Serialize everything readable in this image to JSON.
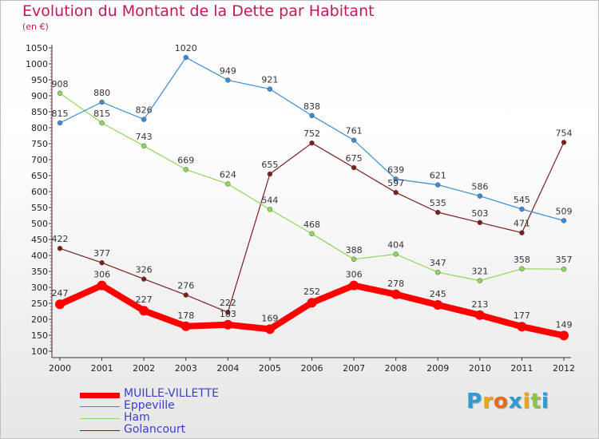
{
  "chart_data": {
    "type": "line",
    "title": "Evolution du Montant de la Dette par Habitant",
    "subtitle": "(en €)",
    "x": [
      "2000",
      "2001",
      "2002",
      "2003",
      "2004",
      "2005",
      "2006",
      "2007",
      "2008",
      "2009",
      "2010",
      "2011",
      "2012"
    ],
    "ylim": [
      100,
      1050
    ],
    "yticks": [
      100,
      150,
      200,
      250,
      300,
      350,
      400,
      450,
      500,
      550,
      600,
      650,
      700,
      750,
      800,
      850,
      900,
      950,
      1000,
      1050
    ],
    "grid": false,
    "legend_position": "bottom-left",
    "series": [
      {
        "name": "MUILLE-VILLETTE",
        "color": "#ff0000",
        "values": [
          247,
          306,
          227,
          178,
          183,
          169,
          252,
          306,
          278,
          245,
          213,
          177,
          149
        ]
      },
      {
        "name": "Eppeville",
        "color": "#3a8bd4",
        "values": [
          815,
          880,
          826,
          1020,
          949,
          921,
          838,
          761,
          639,
          621,
          586,
          545,
          509
        ]
      },
      {
        "name": "Ham",
        "color": "#8fd65a",
        "values": [
          908,
          815,
          743,
          669,
          624,
          544,
          468,
          388,
          404,
          347,
          321,
          358,
          357
        ]
      },
      {
        "name": "Golancourt",
        "color": "#7b1e1e",
        "values": [
          422,
          377,
          326,
          276,
          222,
          655,
          752,
          675,
          597,
          535,
          503,
          471,
          754
        ]
      }
    ]
  },
  "legend": {
    "items": [
      {
        "label": "MUILLE-VILLETTE"
      },
      {
        "label": "Eppeville"
      },
      {
        "label": "Ham"
      },
      {
        "label": "Golancourt"
      }
    ]
  },
  "logo": {
    "letters": [
      "P",
      "r",
      "o",
      "x",
      "i",
      "t",
      "i"
    ],
    "colors": [
      "#2e9ad6",
      "#f0a30a",
      "#e86a1a",
      "#2e9ad6",
      "#f0a30a",
      "#8cc63e",
      "#2e9ad6"
    ]
  }
}
